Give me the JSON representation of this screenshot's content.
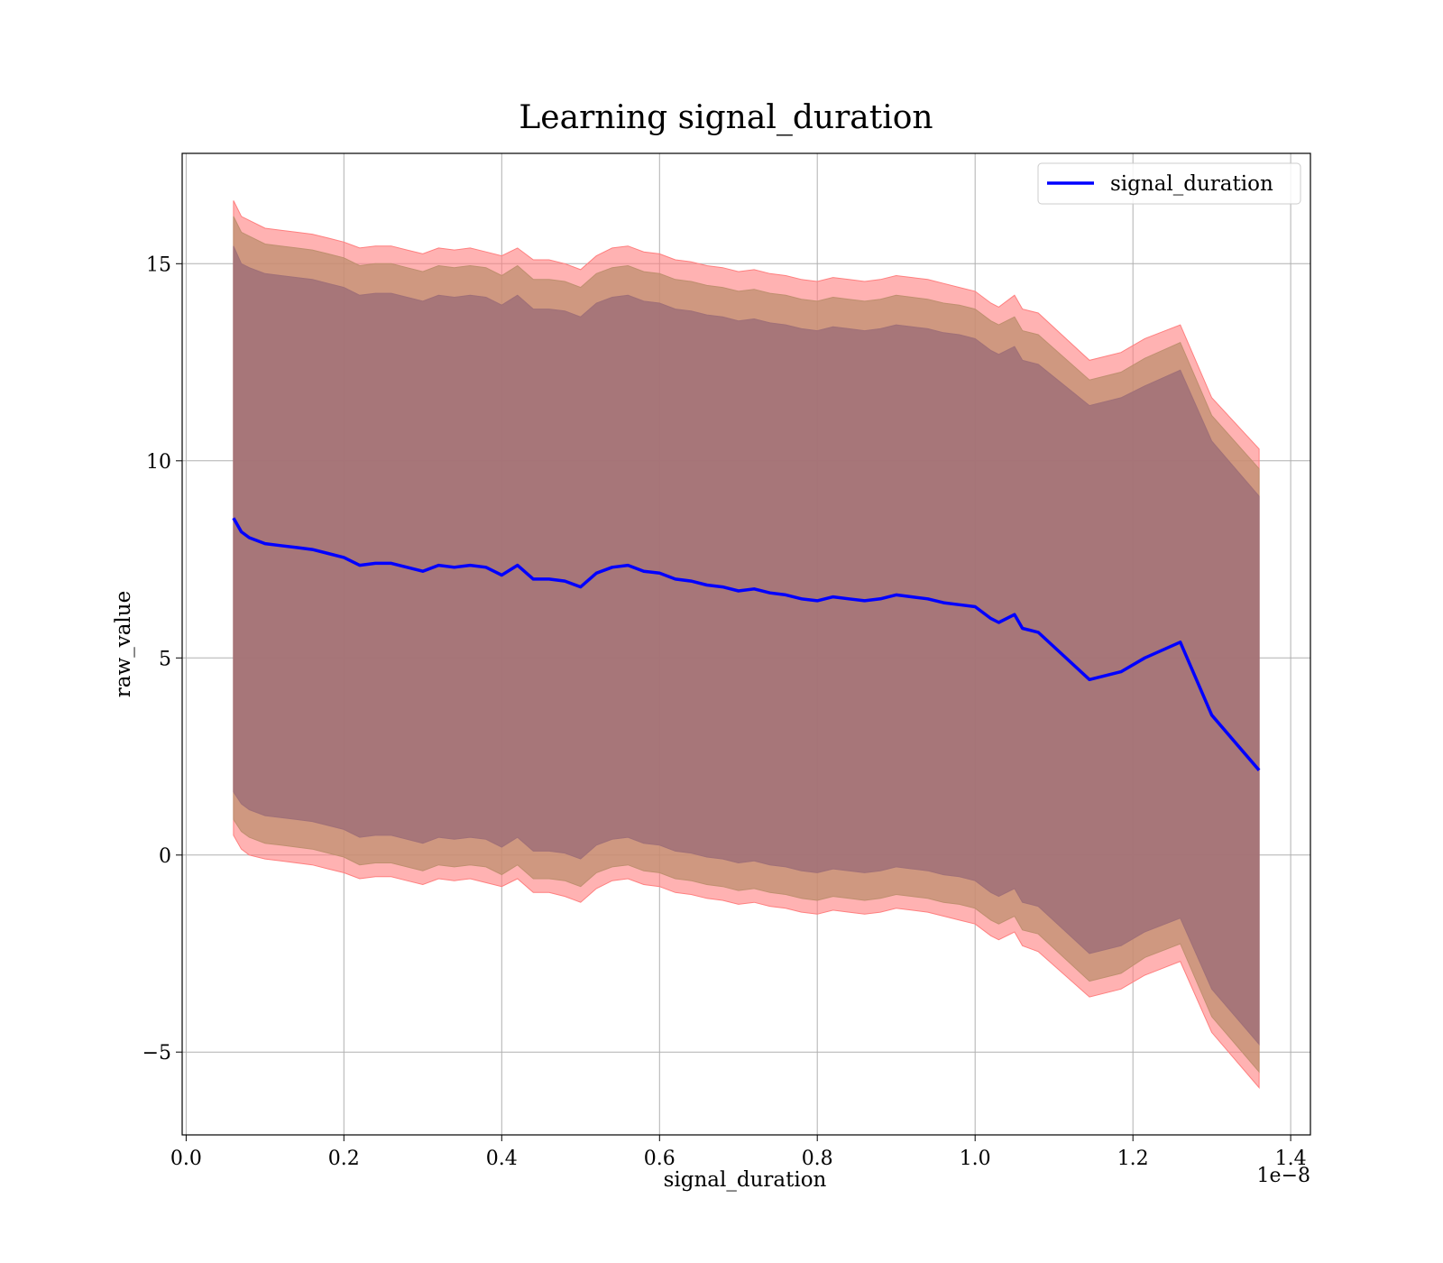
{
  "chart_data": {
    "type": "line",
    "title": "Learning signal_duration",
    "xlabel": "signal_duration",
    "ylabel": "raw_value",
    "x_offset_text": "1e−8",
    "x_ticks": [
      0.0,
      0.2,
      0.4,
      0.6,
      0.8,
      1.0,
      1.2,
      1.4
    ],
    "x_tick_labels": [
      "0.0",
      "0.2",
      "0.4",
      "0.6",
      "0.8",
      "1.0",
      "1.2",
      "1.4"
    ],
    "y_ticks": [
      -5,
      0,
      5,
      10,
      15
    ],
    "y_tick_labels": [
      "−5",
      "0",
      "5",
      "10",
      "15"
    ],
    "xlim": [
      -0.005,
      1.425
    ],
    "ylim": [
      -7.1,
      17.8
    ],
    "grid": true,
    "legend_position": "upper right",
    "legend": [
      "signal_duration"
    ],
    "x": [
      0.06,
      0.07,
      0.08,
      0.1,
      0.12,
      0.14,
      0.16,
      0.18,
      0.2,
      0.22,
      0.24,
      0.26,
      0.28,
      0.3,
      0.32,
      0.34,
      0.36,
      0.38,
      0.4,
      0.42,
      0.44,
      0.46,
      0.48,
      0.5,
      0.52,
      0.54,
      0.56,
      0.58,
      0.6,
      0.62,
      0.64,
      0.66,
      0.68,
      0.7,
      0.72,
      0.74,
      0.76,
      0.78,
      0.8,
      0.82,
      0.84,
      0.86,
      0.88,
      0.9,
      0.92,
      0.94,
      0.96,
      0.98,
      1.0,
      1.02,
      1.03,
      1.05,
      1.06,
      1.08,
      1.145,
      1.185,
      1.215,
      1.26,
      1.3,
      1.36
    ],
    "series": [
      {
        "name": "signal_duration",
        "color": "#0000ff",
        "values": [
          8.55,
          8.2,
          8.05,
          7.9,
          7.85,
          7.8,
          7.75,
          7.65,
          7.55,
          7.35,
          7.4,
          7.4,
          7.3,
          7.2,
          7.35,
          7.3,
          7.35,
          7.3,
          7.1,
          7.35,
          7.0,
          7.0,
          6.95,
          6.8,
          7.15,
          7.3,
          7.35,
          7.2,
          7.15,
          7.0,
          6.95,
          6.85,
          6.8,
          6.7,
          6.75,
          6.65,
          6.6,
          6.5,
          6.45,
          6.55,
          6.5,
          6.45,
          6.5,
          6.6,
          6.55,
          6.5,
          6.4,
          6.35,
          6.3,
          6.0,
          5.9,
          6.1,
          5.75,
          5.65,
          4.45,
          4.65,
          5.0,
          5.4,
          3.55,
          2.15
        ]
      }
    ],
    "bands": [
      {
        "name": "outer",
        "color": "#ff7f7f",
        "upper": [
          16.6,
          16.2,
          16.1,
          15.9,
          15.85,
          15.8,
          15.75,
          15.65,
          15.55,
          15.4,
          15.45,
          15.45,
          15.35,
          15.25,
          15.4,
          15.35,
          15.4,
          15.3,
          15.2,
          15.4,
          15.1,
          15.1,
          15.0,
          14.85,
          15.2,
          15.4,
          15.45,
          15.3,
          15.25,
          15.1,
          15.05,
          14.95,
          14.9,
          14.8,
          14.85,
          14.75,
          14.7,
          14.6,
          14.55,
          14.65,
          14.6,
          14.55,
          14.6,
          14.7,
          14.65,
          14.6,
          14.5,
          14.4,
          14.3,
          14.0,
          13.9,
          14.2,
          13.85,
          13.75,
          12.55,
          12.75,
          13.1,
          13.45,
          11.6,
          10.3
        ],
        "lower": [
          0.5,
          0.15,
          0.0,
          -0.1,
          -0.15,
          -0.2,
          -0.25,
          -0.35,
          -0.45,
          -0.6,
          -0.55,
          -0.55,
          -0.65,
          -0.75,
          -0.6,
          -0.65,
          -0.6,
          -0.7,
          -0.8,
          -0.6,
          -0.95,
          -0.95,
          -1.05,
          -1.2,
          -0.85,
          -0.65,
          -0.6,
          -0.75,
          -0.8,
          -0.95,
          -1.0,
          -1.1,
          -1.15,
          -1.25,
          -1.2,
          -1.3,
          -1.35,
          -1.45,
          -1.5,
          -1.4,
          -1.45,
          -1.5,
          -1.45,
          -1.35,
          -1.4,
          -1.45,
          -1.55,
          -1.65,
          -1.75,
          -2.05,
          -2.15,
          -1.95,
          -2.3,
          -2.45,
          -3.6,
          -3.4,
          -3.05,
          -2.7,
          -4.5,
          -5.9
        ]
      },
      {
        "name": "middle",
        "color": "#bf8f6f",
        "upper": [
          16.2,
          15.8,
          15.7,
          15.5,
          15.45,
          15.4,
          15.35,
          15.25,
          15.15,
          14.95,
          15.0,
          15.0,
          14.9,
          14.8,
          14.95,
          14.9,
          14.95,
          14.9,
          14.7,
          14.95,
          14.6,
          14.6,
          14.55,
          14.4,
          14.75,
          14.9,
          14.95,
          14.8,
          14.75,
          14.6,
          14.55,
          14.45,
          14.4,
          14.3,
          14.35,
          14.25,
          14.2,
          14.1,
          14.05,
          14.15,
          14.1,
          14.05,
          14.1,
          14.2,
          14.15,
          14.1,
          14.0,
          13.95,
          13.85,
          13.55,
          13.45,
          13.65,
          13.3,
          13.2,
          12.05,
          12.25,
          12.6,
          13.0,
          11.15,
          9.8
        ],
        "lower": [
          0.9,
          0.6,
          0.45,
          0.3,
          0.25,
          0.2,
          0.15,
          0.05,
          -0.05,
          -0.25,
          -0.2,
          -0.2,
          -0.3,
          -0.4,
          -0.25,
          -0.3,
          -0.25,
          -0.3,
          -0.5,
          -0.25,
          -0.6,
          -0.6,
          -0.65,
          -0.8,
          -0.45,
          -0.3,
          -0.25,
          -0.4,
          -0.45,
          -0.6,
          -0.65,
          -0.75,
          -0.8,
          -0.9,
          -0.85,
          -0.95,
          -1.0,
          -1.1,
          -1.15,
          -1.05,
          -1.1,
          -1.15,
          -1.1,
          -1.0,
          -1.05,
          -1.1,
          -1.2,
          -1.25,
          -1.35,
          -1.65,
          -1.75,
          -1.55,
          -1.9,
          -2.0,
          -3.2,
          -3.0,
          -2.6,
          -2.25,
          -4.1,
          -5.5
        ]
      },
      {
        "name": "inner",
        "color": "#a07078",
        "upper": [
          15.45,
          15.0,
          14.9,
          14.75,
          14.7,
          14.65,
          14.6,
          14.5,
          14.4,
          14.2,
          14.25,
          14.25,
          14.15,
          14.05,
          14.2,
          14.15,
          14.2,
          14.15,
          13.95,
          14.2,
          13.85,
          13.85,
          13.8,
          13.65,
          14.0,
          14.15,
          14.2,
          14.05,
          14.0,
          13.85,
          13.8,
          13.7,
          13.65,
          13.55,
          13.6,
          13.5,
          13.45,
          13.35,
          13.3,
          13.4,
          13.35,
          13.3,
          13.35,
          13.45,
          13.4,
          13.35,
          13.25,
          13.2,
          13.1,
          12.8,
          12.7,
          12.9,
          12.55,
          12.45,
          11.4,
          11.6,
          11.9,
          12.3,
          10.5,
          9.1
        ],
        "lower": [
          1.6,
          1.3,
          1.15,
          1.0,
          0.95,
          0.9,
          0.85,
          0.75,
          0.65,
          0.45,
          0.5,
          0.5,
          0.4,
          0.3,
          0.45,
          0.4,
          0.45,
          0.4,
          0.2,
          0.45,
          0.1,
          0.1,
          0.05,
          -0.1,
          0.25,
          0.4,
          0.45,
          0.3,
          0.25,
          0.1,
          0.05,
          -0.05,
          -0.1,
          -0.2,
          -0.15,
          -0.25,
          -0.3,
          -0.4,
          -0.45,
          -0.35,
          -0.4,
          -0.45,
          -0.4,
          -0.3,
          -0.35,
          -0.4,
          -0.5,
          -0.55,
          -0.65,
          -0.95,
          -1.05,
          -0.85,
          -1.2,
          -1.3,
          -2.5,
          -2.3,
          -1.95,
          -1.6,
          -3.4,
          -4.8
        ]
      }
    ]
  }
}
